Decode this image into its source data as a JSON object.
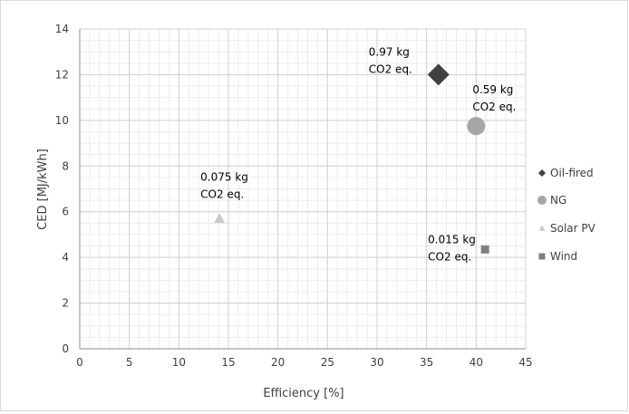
{
  "chart_data": {
    "type": "scatter",
    "title": "",
    "xlabel": "Efficiency [%]",
    "ylabel": "CED [MJ/kWh]",
    "xlim": [
      0,
      45
    ],
    "ylim": [
      0,
      14
    ],
    "x_ticks": [
      0,
      5,
      10,
      15,
      20,
      25,
      30,
      35,
      40,
      45
    ],
    "y_ticks": [
      0,
      2,
      4,
      6,
      8,
      10,
      12,
      14
    ],
    "x_tick_labels": [
      "0",
      "5",
      "10",
      "15",
      "20",
      "25",
      "30",
      "35",
      "40",
      "45"
    ],
    "y_tick_labels": [
      "0",
      "2",
      "4",
      "6",
      "8",
      "10",
      "12",
      "14"
    ],
    "grid": true,
    "legend_position": "right",
    "series": [
      {
        "name": "Oil-fired",
        "marker": "diamond",
        "color": "#404040",
        "x": 36.2,
        "y": 12.0,
        "annotation": [
          "0.97 kg",
          "CO2 eq."
        ]
      },
      {
        "name": "NG",
        "marker": "circle",
        "color": "#a6a6a6",
        "x": 40.0,
        "y": 9.75,
        "annotation": [
          "0.59 kg",
          "CO2 eq."
        ]
      },
      {
        "name": "Solar PV",
        "marker": "triangle",
        "color": "#c8c8c8",
        "x": 14.1,
        "y": 5.7,
        "annotation": [
          "0.075 kg",
          "CO2 eq."
        ]
      },
      {
        "name": "Wind",
        "marker": "square",
        "color": "#7f7f7f",
        "x": 40.9,
        "y": 4.35,
        "annotation": [
          "0.015 kg",
          "CO2 eq."
        ]
      }
    ]
  }
}
